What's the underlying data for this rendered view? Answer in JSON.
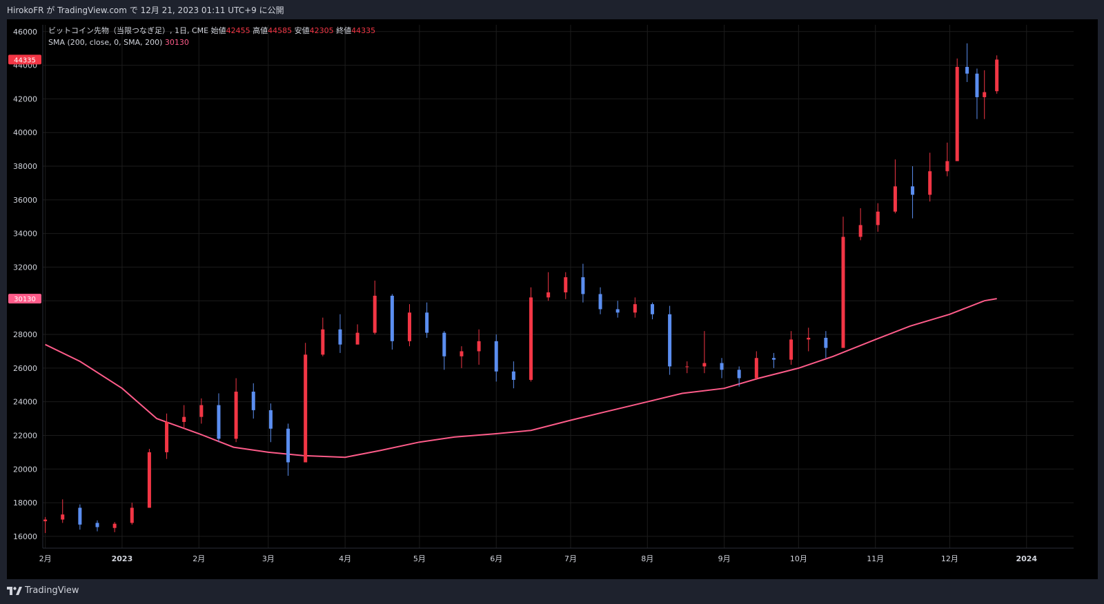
{
  "header": {
    "publish_text": "HirokoFR が TradingView.com で 12月 21, 2023 01:11 UTC+9 に公開"
  },
  "legend": {
    "symbol": "ビットコイン先物（当限つなぎ足）, 1日, CME",
    "open_label": "始値",
    "open": "42455",
    "high_label": "高値",
    "high": "44585",
    "low_label": "安値",
    "low": "42305",
    "close_label": "終値",
    "close": "44335",
    "sma_label": "SMA (200, close, 0, SMA, 200)",
    "sma_value": "30130"
  },
  "footer": {
    "brand": "TradingView"
  },
  "colors": {
    "up": "#f23645",
    "down": "#5b8ef0",
    "sma": "#ff5c8a",
    "bg": "#000000",
    "grid": "#1c1c1c"
  },
  "chart_data": {
    "type": "candlestick",
    "y_ticks": [
      16000,
      18000,
      20000,
      22000,
      24000,
      26000,
      28000,
      30000,
      32000,
      34000,
      36000,
      38000,
      40000,
      42000,
      44000,
      46000
    ],
    "ylim": [
      15300,
      46400
    ],
    "x_ticks": [
      "2月",
      "2023",
      "2月",
      "3月",
      "4月",
      "5月",
      "6月",
      "7月",
      "8月",
      "9月",
      "10月",
      "11月",
      "12月",
      "2024"
    ],
    "price_labels": [
      {
        "value": 44335,
        "label": "44335",
        "color": "#f23645"
      },
      {
        "value": 30130,
        "label": "30130",
        "color": "#ff5c8a"
      }
    ],
    "sma_points": [
      [
        "2022-12-01",
        27400
      ],
      [
        "2022-12-15",
        26400
      ],
      [
        "2023-01-01",
        24800
      ],
      [
        "2023-01-15",
        23000
      ],
      [
        "2023-02-01",
        22100
      ],
      [
        "2023-02-15",
        21300
      ],
      [
        "2023-03-01",
        21000
      ],
      [
        "2023-03-15",
        20800
      ],
      [
        "2023-04-01",
        20700
      ],
      [
        "2023-04-15",
        21100
      ],
      [
        "2023-05-01",
        21600
      ],
      [
        "2023-05-15",
        21900
      ],
      [
        "2023-06-01",
        22100
      ],
      [
        "2023-06-15",
        22300
      ],
      [
        "2023-07-01",
        22900
      ],
      [
        "2023-07-15",
        23400
      ],
      [
        "2023-08-01",
        24000
      ],
      [
        "2023-08-15",
        24500
      ],
      [
        "2023-09-01",
        24800
      ],
      [
        "2023-09-15",
        25400
      ],
      [
        "2023-10-01",
        26000
      ],
      [
        "2023-10-15",
        26700
      ],
      [
        "2023-11-01",
        27700
      ],
      [
        "2023-11-15",
        28500
      ],
      [
        "2023-12-01",
        29200
      ],
      [
        "2023-12-15",
        30000
      ],
      [
        "2023-12-20",
        30130
      ]
    ],
    "candles_weekly": [
      [
        "2022-12-01",
        16900,
        17150,
        16200,
        17000
      ],
      [
        "2022-12-08",
        17000,
        18200,
        16800,
        17300
      ],
      [
        "2022-12-15",
        17700,
        17900,
        16400,
        16700
      ],
      [
        "2022-12-22",
        16800,
        16950,
        16300,
        16550
      ],
      [
        "2022-12-29",
        16500,
        16850,
        16250,
        16750
      ],
      [
        "2023-01-05",
        16800,
        18000,
        16700,
        17700
      ],
      [
        "2023-01-12",
        17700,
        21200,
        17700,
        21000
      ],
      [
        "2023-01-19",
        21000,
        23300,
        20600,
        22800
      ],
      [
        "2023-01-26",
        22800,
        23800,
        22400,
        23100
      ],
      [
        "2023-02-02",
        23100,
        24200,
        22700,
        23800
      ],
      [
        "2023-02-09",
        23800,
        24500,
        21600,
        21800
      ],
      [
        "2023-02-16",
        21800,
        25400,
        21600,
        24600
      ],
      [
        "2023-02-23",
        24600,
        25100,
        23000,
        23500
      ],
      [
        "2023-03-02",
        23500,
        23900,
        21600,
        22400
      ],
      [
        "2023-03-09",
        22400,
        22700,
        19600,
        20400
      ],
      [
        "2023-03-16",
        20400,
        27500,
        20400,
        26800
      ],
      [
        "2023-03-23",
        26800,
        29000,
        26700,
        28300
      ],
      [
        "2023-03-30",
        28300,
        29200,
        26900,
        27400
      ],
      [
        "2023-04-06",
        27400,
        28600,
        27800,
        28100
      ],
      [
        "2023-04-13",
        28100,
        31200,
        28000,
        30300
      ],
      [
        "2023-04-20",
        30300,
        30400,
        27100,
        27600
      ],
      [
        "2023-04-27",
        27600,
        29800,
        27300,
        29300
      ],
      [
        "2023-05-04",
        29300,
        29900,
        27800,
        28100
      ],
      [
        "2023-05-11",
        28100,
        28200,
        25900,
        26700
      ],
      [
        "2023-05-18",
        26700,
        27300,
        26000,
        27000
      ],
      [
        "2023-05-25",
        27000,
        28300,
        26200,
        27600
      ],
      [
        "2023-06-01",
        27600,
        28000,
        25200,
        25800
      ],
      [
        "2023-06-08",
        25800,
        26400,
        24800,
        25300
      ],
      [
        "2023-06-15",
        25300,
        30800,
        25200,
        30200
      ],
      [
        "2023-06-22",
        30200,
        31700,
        30000,
        30500
      ],
      [
        "2023-06-29",
        30500,
        31700,
        30100,
        31400
      ],
      [
        "2023-07-06",
        31400,
        32200,
        29900,
        30400
      ],
      [
        "2023-07-13",
        30400,
        30800,
        29200,
        29500
      ],
      [
        "2023-07-20",
        29500,
        30000,
        29000,
        29300
      ],
      [
        "2023-07-27",
        29300,
        30200,
        29000,
        29800
      ],
      [
        "2023-08-03",
        29800,
        29900,
        28900,
        29200
      ],
      [
        "2023-08-10",
        29200,
        29700,
        25600,
        26100
      ],
      [
        "2023-08-17",
        26100,
        26400,
        25700,
        26100
      ],
      [
        "2023-08-24",
        26100,
        28200,
        25700,
        26300
      ],
      [
        "2023-08-31",
        26300,
        26600,
        25400,
        25900
      ],
      [
        "2023-09-07",
        25900,
        26100,
        24900,
        25400
      ],
      [
        "2023-09-14",
        25400,
        27000,
        25300,
        26600
      ],
      [
        "2023-09-21",
        26600,
        26900,
        26000,
        26500
      ],
      [
        "2023-09-28",
        26500,
        28200,
        26200,
        27700
      ],
      [
        "2023-10-05",
        27700,
        28400,
        27000,
        27800
      ],
      [
        "2023-10-12",
        27800,
        28200,
        26600,
        27200
      ],
      [
        "2023-10-19",
        27200,
        35000,
        28000,
        33800
      ],
      [
        "2023-10-26",
        33800,
        35500,
        33600,
        34500
      ],
      [
        "2023-11-02",
        34500,
        35800,
        34100,
        35300
      ],
      [
        "2023-11-09",
        35300,
        38400,
        35200,
        36800
      ],
      [
        "2023-11-16",
        36800,
        38000,
        34900,
        36300
      ],
      [
        "2023-11-23",
        36300,
        38800,
        35900,
        37700
      ],
      [
        "2023-11-30",
        37700,
        39400,
        37400,
        38300
      ],
      [
        "2023-12-04",
        38300,
        44400,
        40200,
        43900
      ],
      [
        "2023-12-08",
        43900,
        45300,
        43000,
        43500
      ],
      [
        "2023-12-12",
        43500,
        43800,
        40800,
        42100
      ],
      [
        "2023-12-15",
        42100,
        43700,
        40800,
        42400
      ],
      [
        "2023-12-20",
        42455,
        44585,
        42305,
        44335
      ]
    ]
  }
}
